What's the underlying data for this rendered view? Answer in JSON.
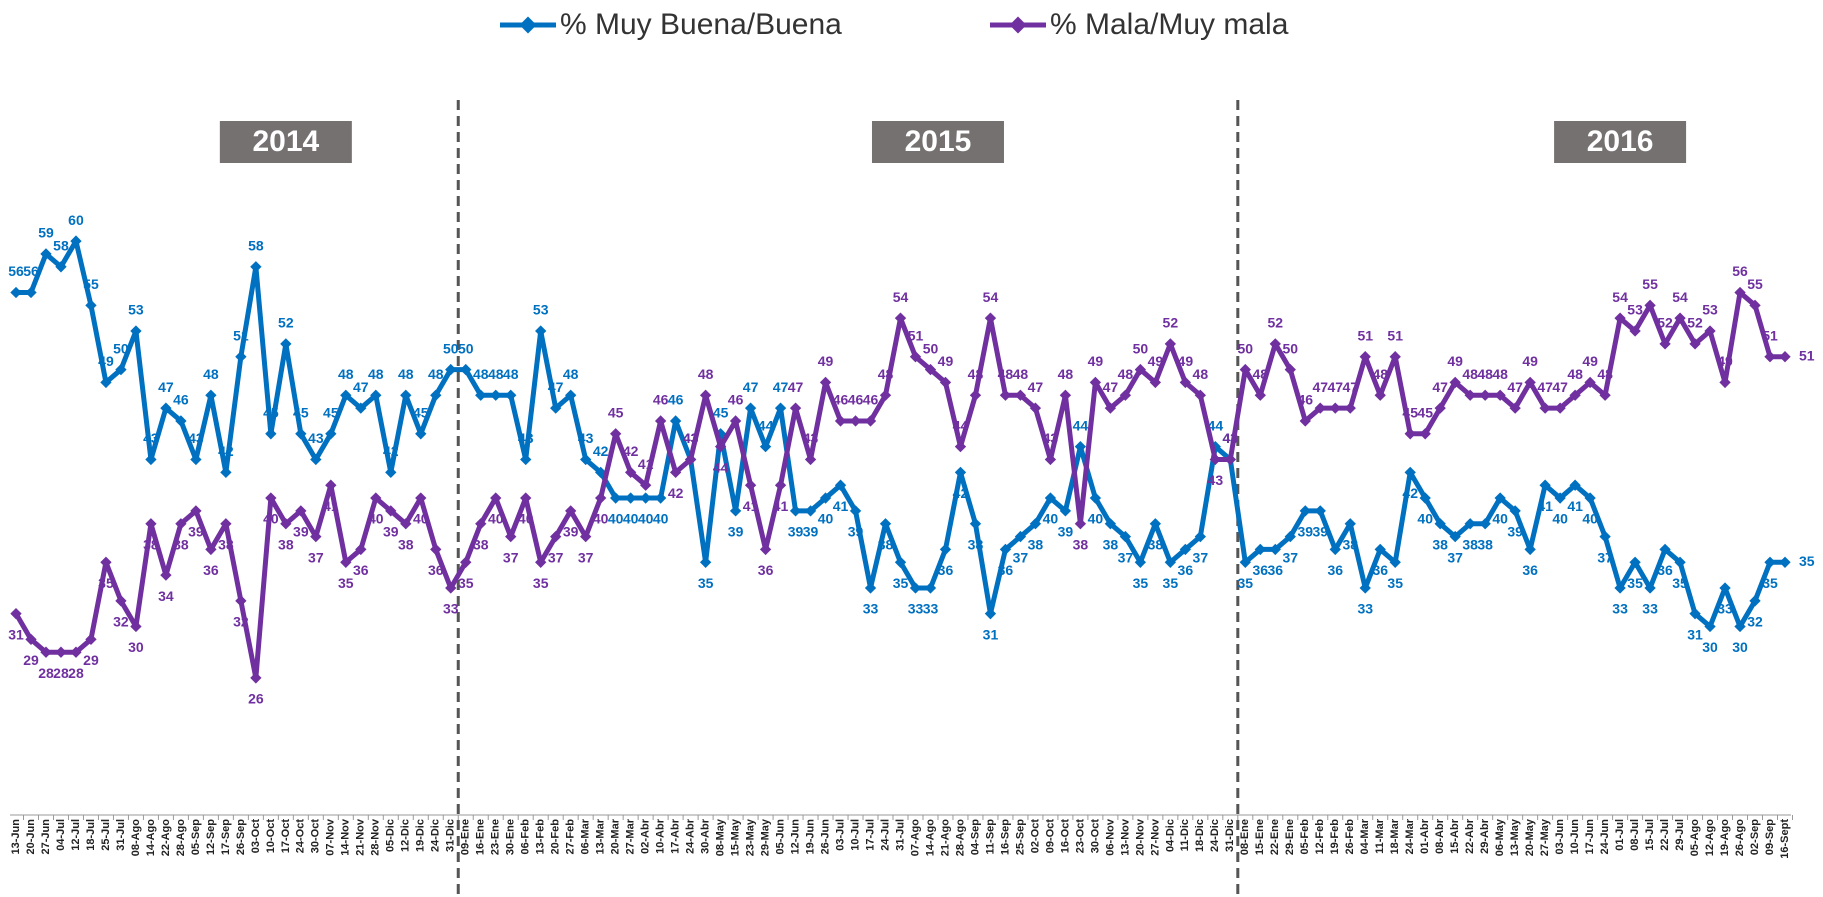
{
  "chart_data": {
    "type": "line",
    "categories": [
      "13-Jun",
      "20-Jun",
      "27-Jun",
      "04-Jul",
      "12-Jul",
      "18-Jul",
      "25-Jul",
      "31-Jul",
      "08-Ago",
      "14-Ago",
      "22-Ago",
      "28-Ago",
      "05-Sep",
      "12-Sep",
      "17-Sep",
      "26-Sep",
      "03-Oct",
      "10-Oct",
      "17-Oct",
      "24-Oct",
      "30-Oct",
      "07-Nov",
      "14-Nov",
      "21-Nov",
      "28-Nov",
      "05-Dic",
      "12-Dic",
      "19-Dic",
      "24-Dic",
      "31-Dic",
      "09-Ene",
      "16-Ene",
      "23-Ene",
      "30-Ene",
      "06-Feb",
      "13-Feb",
      "20-Feb",
      "27-Feb",
      "06-Mar",
      "13-Mar",
      "20-Mar",
      "27-Mar",
      "02-Abr",
      "10-Abr",
      "17-Abr",
      "24-Abr",
      "30-Abr",
      "08-May",
      "15-May",
      "23-May",
      "29-May",
      "05-Jun",
      "12-Jun",
      "19-Jun",
      "26-Jun",
      "03-Jul",
      "10-Jul",
      "17-Jul",
      "24-Jul",
      "31-Jul",
      "07-Ago",
      "14-Ago",
      "21-Ago",
      "28-Ago",
      "04-Sep",
      "11-Sep",
      "16-Sep",
      "25-Sep",
      "02-Oct",
      "09-Oct",
      "16-Oct",
      "23-Oct",
      "30-Oct",
      "06-Nov",
      "13-Nov",
      "20-Nov",
      "27-Nov",
      "04-Dic",
      "11-Dic",
      "18-Dic",
      "24-Dic",
      "31-Dic",
      "08-Ene",
      "15-Ene",
      "22-Ene",
      "29-Ene",
      "05-Feb",
      "12-Feb",
      "19-Feb",
      "26-Feb",
      "04-Mar",
      "11-Mar",
      "18-Mar",
      "24-Mar",
      "01-Abr",
      "08-Abr",
      "15-Abr",
      "22-Abr",
      "29-Abr",
      "06-May",
      "13-May",
      "20-May",
      "27-May",
      "03-Jun",
      "10-Jun",
      "17-Jun",
      "24-Jun",
      "01-Jul",
      "08-Jul",
      "15-Jul",
      "22-Jul",
      "29-Jul",
      "05-Ago",
      "12-Ago",
      "19-Ago",
      "26-Ago",
      "02-Sep",
      "09-Sep",
      "16-Sept"
    ],
    "series": [
      {
        "name": "% Muy Buena/Buena",
        "color": "#0070C0",
        "values": [
          56,
          56,
          59,
          58,
          60,
          55,
          49,
          50,
          53,
          43,
          47,
          46,
          43,
          48,
          42,
          51,
          58,
          45,
          52,
          45,
          43,
          45,
          48,
          47,
          48,
          42,
          48,
          45,
          48,
          50,
          50,
          48,
          48,
          48,
          43,
          53,
          47,
          48,
          43,
          42,
          40,
          40,
          40,
          40,
          46,
          43,
          35,
          45,
          39,
          47,
          44,
          47,
          39,
          39,
          40,
          41,
          39,
          33,
          38,
          35,
          33,
          33,
          36,
          42,
          38,
          31,
          36,
          37,
          38,
          40,
          39,
          44,
          40,
          38,
          37,
          35,
          38,
          35,
          36,
          37,
          44,
          43,
          35,
          36,
          36,
          37,
          39,
          39,
          36,
          38,
          33,
          36,
          35,
          42,
          40,
          38,
          37,
          38,
          38,
          40,
          39,
          36,
          41,
          40,
          41,
          40,
          37,
          33,
          35,
          33,
          36,
          35,
          31,
          30,
          33,
          30,
          32,
          35,
          35
        ]
      },
      {
        "name": "% Mala/Muy mala",
        "color": "#7030A0",
        "values": [
          31,
          29,
          28,
          28,
          28,
          29,
          35,
          32,
          30,
          38,
          34,
          38,
          39,
          36,
          38,
          32,
          26,
          40,
          38,
          39,
          37,
          41,
          35,
          36,
          40,
          39,
          38,
          40,
          36,
          33,
          35,
          38,
          40,
          37,
          40,
          35,
          37,
          39,
          37,
          40,
          45,
          42,
          41,
          46,
          42,
          43,
          48,
          44,
          46,
          41,
          36,
          41,
          47,
          43,
          49,
          46,
          46,
          46,
          48,
          54,
          51,
          50,
          49,
          44,
          48,
          54,
          48,
          48,
          47,
          43,
          48,
          38,
          49,
          47,
          48,
          50,
          49,
          52,
          49,
          48,
          43,
          43,
          50,
          48,
          52,
          50,
          46,
          47,
          47,
          47,
          51,
          48,
          51,
          45,
          45,
          47,
          49,
          48,
          48,
          48,
          47,
          49,
          47,
          47,
          48,
          49,
          48,
          54,
          53,
          55,
          52,
          54,
          52,
          53,
          49,
          56,
          55,
          51,
          51
        ]
      }
    ],
    "annotations": [
      "2014",
      "2015",
      "2016"
    ],
    "ylim": [
      20,
      66
    ]
  }
}
